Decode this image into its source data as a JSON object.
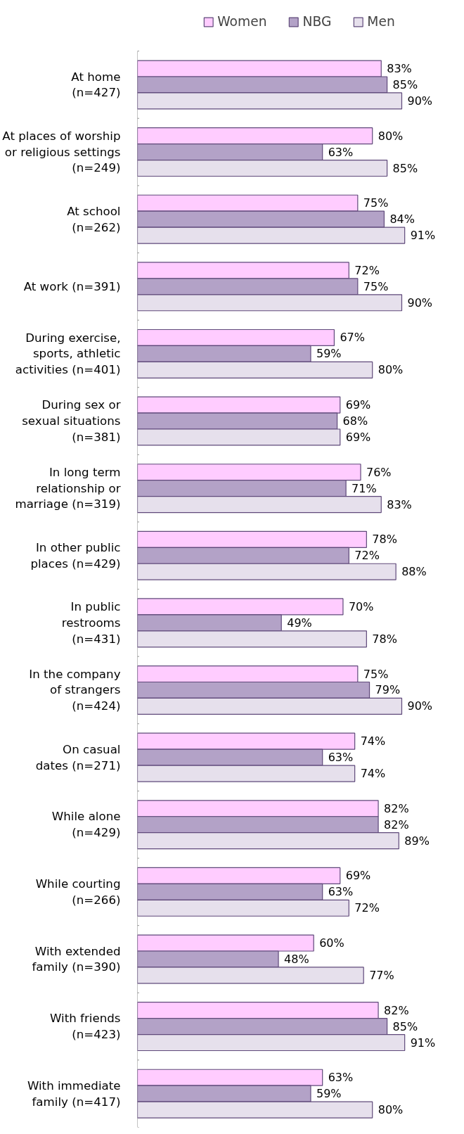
{
  "chart_data": {
    "type": "bar",
    "orientation": "horizontal",
    "legend": "top",
    "grid": false,
    "categories": [
      "At home\n(n=427)",
      "At places of worship\nor religious settings\n(n=249)",
      "At school\n(n=262)",
      "At work (n=391)",
      "During exercise,\nsports, athletic\nactivities (n=401)",
      "During sex or\nsexual situations\n(n=381)",
      "In long term\nrelationship or\nmarriage (n=319)",
      "In other public\nplaces (n=429)",
      "In public\nrestrooms\n(n=431)",
      "In the company\nof strangers\n(n=424)",
      "On casual\ndates (n=271)",
      "While alone\n(n=429)",
      "While courting\n(n=266)",
      "With extended\nfamily (n=390)",
      "With friends\n(n=423)",
      "With immediate\nfamily (n=417)"
    ],
    "series": [
      {
        "name": "Women",
        "color": "#ffccff",
        "values": [
          83,
          80,
          75,
          72,
          67,
          69,
          76,
          78,
          70,
          75,
          74,
          82,
          69,
          60,
          82,
          63
        ],
        "value_labels": [
          "83%",
          "80%",
          "75%",
          "72%",
          "67%",
          "69%",
          "76%",
          "78%",
          "70%",
          "75%",
          "74%",
          "82%",
          "69%",
          "60%",
          "82%",
          "63%"
        ]
      },
      {
        "name": "NBG",
        "color": "#b3a2c7",
        "values": [
          85,
          63,
          84,
          75,
          59,
          68,
          71,
          72,
          49,
          79,
          63,
          82,
          63,
          48,
          85,
          59
        ],
        "value_labels": [
          "85%",
          "63%",
          "84%",
          "75%",
          "59%",
          "68%",
          "71%",
          "72%",
          "49%",
          "79%",
          "63%",
          "82%",
          "63%",
          "48%",
          "85%",
          "59%"
        ]
      },
      {
        "name": "Men",
        "color": "#e6e0ec",
        "values": [
          90,
          85,
          91,
          90,
          80,
          69,
          83,
          88,
          78,
          90,
          74,
          89,
          72,
          77,
          91,
          80
        ],
        "value_labels": [
          "90%",
          "85%",
          "91%",
          "90%",
          "80%",
          "69%",
          "83%",
          "88%",
          "78%",
          "90%",
          "74%",
          "89%",
          "72%",
          "77%",
          "91%",
          "80%"
        ]
      }
    ]
  }
}
